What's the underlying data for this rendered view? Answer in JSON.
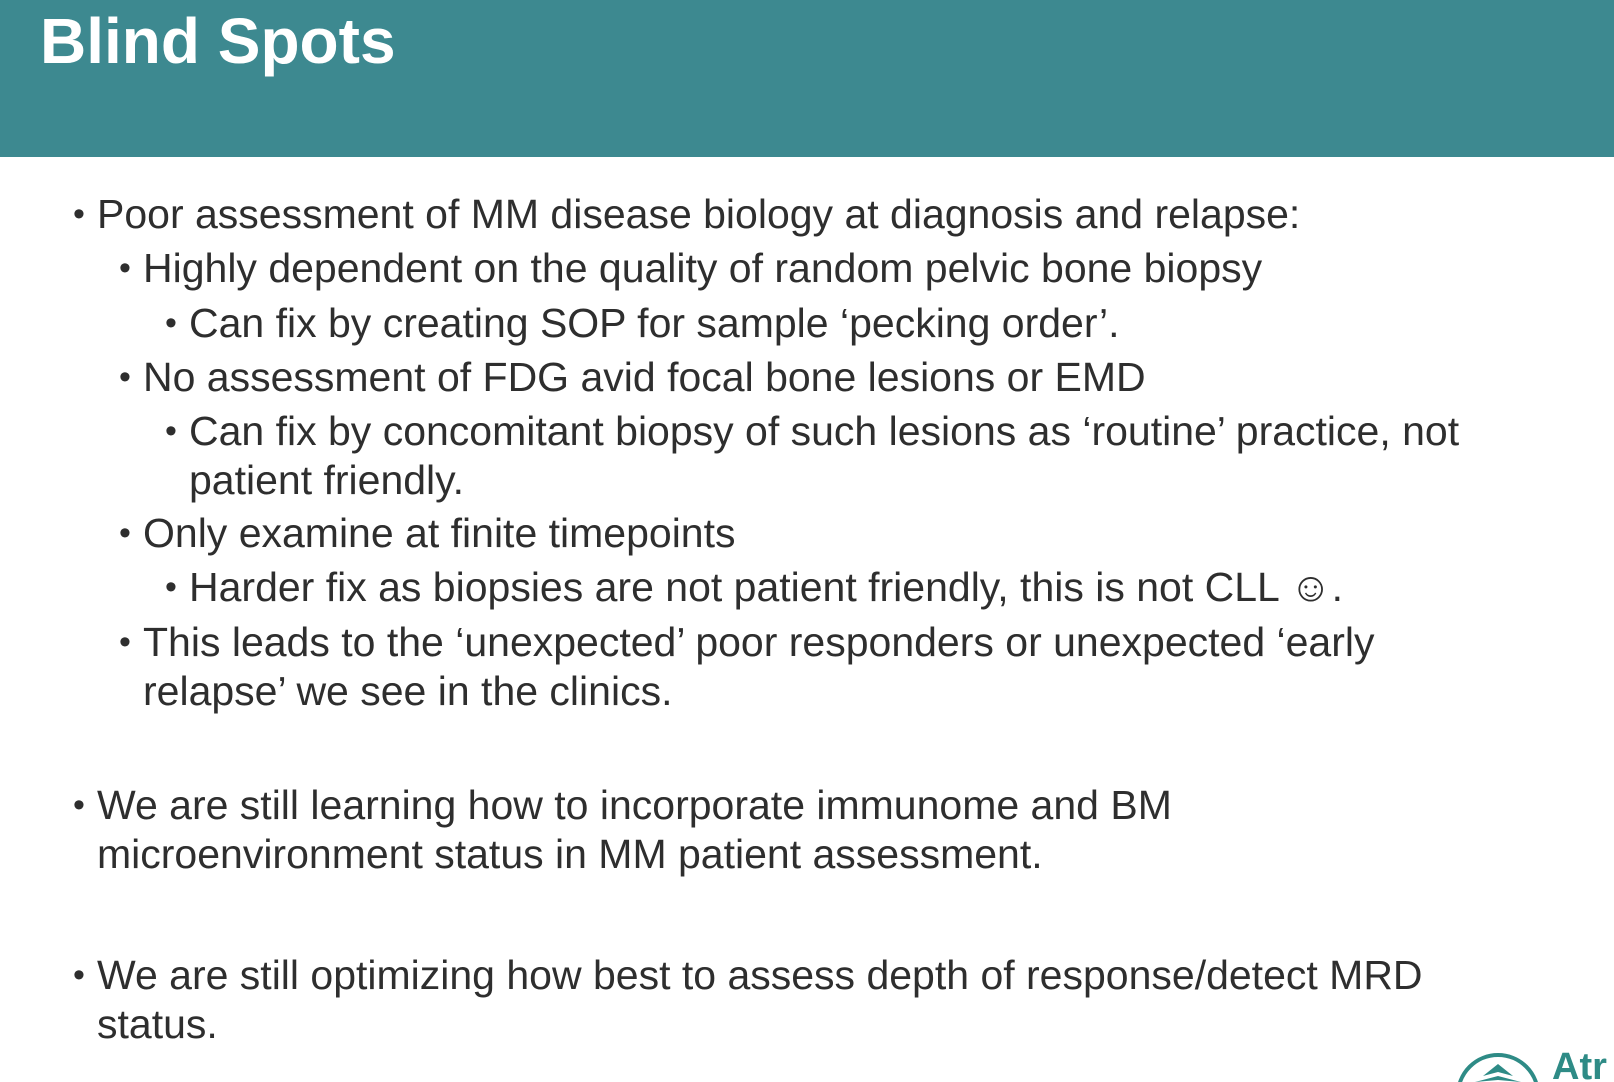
{
  "slide": {
    "title": "Blind Spots",
    "bullets": {
      "b1": "Poor assessment of MM disease biology at diagnosis and relapse:",
      "b1_1": "Highly dependent on the quality of random pelvic bone biopsy",
      "b1_1_1": "Can fix by creating SOP for sample ‘pecking order’.",
      "b1_2": "No assessment of FDG avid focal bone lesions or EMD",
      "b1_2_1_line1": "Can fix by concomitant biopsy of such lesions as ‘routine’ practice, not",
      "b1_2_1_line2": "patient friendly.",
      "b1_3": "Only examine at finite timepoints",
      "b1_3_1": "Harder fix as biopsies are not patient friendly, this is not CLL ☺.",
      "b1_4_line1": "This leads to the ‘unexpected’ poor responders or unexpected ‘early",
      "b1_4_line2": "relapse’ we see in the clinics.",
      "b2_line1": "We are still learning how to incorporate immunome and BM",
      "b2_line2": "microenvironment status in MM patient assessment.",
      "b3_line1": "We are still optimizing how best to assess depth of response/detect MRD",
      "b3_line2": "status."
    },
    "logo_text": "Atr",
    "bullet_char": "•"
  },
  "colors": {
    "header_bg": "#3d8990",
    "title_text": "#ffffff",
    "body_text": "#2e2e2e",
    "logo": "#2e8b86"
  },
  "icons": {
    "logo_mark": "atrium-logo-icon"
  }
}
